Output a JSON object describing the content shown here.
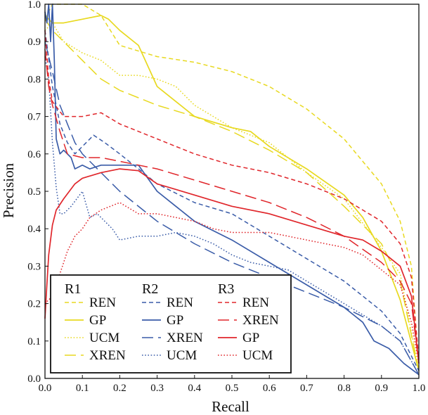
{
  "chart_data": {
    "type": "line",
    "xlabel": "Recall",
    "ylabel": "Precision",
    "xlim": [
      0,
      1
    ],
    "ylim": [
      0,
      1
    ],
    "xticks": [
      "0.0",
      "0.1",
      "0.2",
      "0.3",
      "0.4",
      "0.5",
      "0.6",
      "0.7",
      "0.8",
      "0.9",
      "1.0"
    ],
    "yticks": [
      "0.0",
      "0.1",
      "0.2",
      "0.3",
      "0.4",
      "0.5",
      "0.6",
      "0.7",
      "0.8",
      "0.9",
      "1.0"
    ],
    "grid": false,
    "legend_position": "bottom-left",
    "groups": [
      {
        "name": "R1",
        "color": "#e8d920"
      },
      {
        "name": "R2",
        "color": "#3a5ca8"
      },
      {
        "name": "R3",
        "color": "#e0262b"
      }
    ],
    "series": [
      {
        "group": "R1",
        "name": "REN",
        "color": "#e8d920",
        "style": "short-dash",
        "points": [
          [
            0.0,
            0.96
          ],
          [
            0.01,
            0.98
          ],
          [
            0.02,
            1.0
          ],
          [
            0.05,
            1.0
          ],
          [
            0.1,
            1.0
          ],
          [
            0.15,
            0.97
          ],
          [
            0.2,
            0.89
          ],
          [
            0.3,
            0.86
          ],
          [
            0.4,
            0.845
          ],
          [
            0.5,
            0.82
          ],
          [
            0.6,
            0.78
          ],
          [
            0.7,
            0.72
          ],
          [
            0.8,
            0.64
          ],
          [
            0.9,
            0.52
          ],
          [
            0.95,
            0.42
          ],
          [
            0.98,
            0.3
          ],
          [
            1.0,
            0.03
          ]
        ]
      },
      {
        "group": "R1",
        "name": "GP",
        "color": "#e8d920",
        "style": "solid",
        "points": [
          [
            0.0,
            0.97
          ],
          [
            0.02,
            0.95
          ],
          [
            0.05,
            0.95
          ],
          [
            0.1,
            0.96
          ],
          [
            0.15,
            0.97
          ],
          [
            0.17,
            0.96
          ],
          [
            0.2,
            0.93
          ],
          [
            0.25,
            0.89
          ],
          [
            0.3,
            0.78
          ],
          [
            0.4,
            0.7
          ],
          [
            0.5,
            0.67
          ],
          [
            0.55,
            0.66
          ],
          [
            0.6,
            0.62
          ],
          [
            0.7,
            0.56
          ],
          [
            0.8,
            0.49
          ],
          [
            0.85,
            0.43
          ],
          [
            0.9,
            0.34
          ],
          [
            0.95,
            0.21
          ],
          [
            1.0,
            0.02
          ]
        ]
      },
      {
        "group": "R1",
        "name": "UCM",
        "color": "#e8d920",
        "style": "dotted",
        "points": [
          [
            0.0,
            0.93
          ],
          [
            0.02,
            0.95
          ],
          [
            0.05,
            0.9
          ],
          [
            0.1,
            0.87
          ],
          [
            0.15,
            0.85
          ],
          [
            0.2,
            0.81
          ],
          [
            0.25,
            0.81
          ],
          [
            0.3,
            0.8
          ],
          [
            0.35,
            0.78
          ],
          [
            0.4,
            0.73
          ],
          [
            0.5,
            0.67
          ],
          [
            0.6,
            0.63
          ],
          [
            0.7,
            0.55
          ],
          [
            0.8,
            0.48
          ],
          [
            0.9,
            0.35
          ],
          [
            0.95,
            0.28
          ],
          [
            1.0,
            0.02
          ]
        ]
      },
      {
        "group": "R1",
        "name": "XREN",
        "color": "#e8d920",
        "style": "long-dash",
        "points": [
          [
            0.0,
            0.96
          ],
          [
            0.02,
            0.93
          ],
          [
            0.05,
            0.9
          ],
          [
            0.1,
            0.85
          ],
          [
            0.15,
            0.8
          ],
          [
            0.2,
            0.77
          ],
          [
            0.3,
            0.73
          ],
          [
            0.4,
            0.7
          ],
          [
            0.5,
            0.66
          ],
          [
            0.6,
            0.61
          ],
          [
            0.7,
            0.55
          ],
          [
            0.8,
            0.46
          ],
          [
            0.9,
            0.36
          ],
          [
            0.95,
            0.26
          ],
          [
            1.0,
            0.02
          ]
        ]
      },
      {
        "group": "R2",
        "name": "REN",
        "color": "#3a5ca8",
        "style": "short-dash",
        "points": [
          [
            0.0,
            0.93
          ],
          [
            0.02,
            0.78
          ],
          [
            0.04,
            0.68
          ],
          [
            0.06,
            0.63
          ],
          [
            0.08,
            0.6
          ],
          [
            0.1,
            0.62
          ],
          [
            0.13,
            0.65
          ],
          [
            0.16,
            0.63
          ],
          [
            0.2,
            0.6
          ],
          [
            0.25,
            0.56
          ],
          [
            0.3,
            0.52
          ],
          [
            0.4,
            0.47
          ],
          [
            0.5,
            0.44
          ],
          [
            0.6,
            0.38
          ],
          [
            0.7,
            0.32
          ],
          [
            0.8,
            0.26
          ],
          [
            0.9,
            0.18
          ],
          [
            0.95,
            0.12
          ],
          [
            1.0,
            0.02
          ]
        ]
      },
      {
        "group": "R2",
        "name": "GP",
        "color": "#3a5ca8",
        "style": "solid",
        "points": [
          [
            0.0,
            0.98
          ],
          [
            0.005,
            0.95
          ],
          [
            0.01,
            1.0
          ],
          [
            0.015,
            0.9
          ],
          [
            0.02,
            1.0
          ],
          [
            0.025,
            0.85
          ],
          [
            0.03,
            0.64
          ],
          [
            0.04,
            0.6
          ],
          [
            0.05,
            0.61
          ],
          [
            0.07,
            0.59
          ],
          [
            0.08,
            0.56
          ],
          [
            0.1,
            0.57
          ],
          [
            0.12,
            0.56
          ],
          [
            0.15,
            0.57
          ],
          [
            0.2,
            0.57
          ],
          [
            0.25,
            0.57
          ],
          [
            0.3,
            0.5
          ],
          [
            0.35,
            0.46
          ],
          [
            0.4,
            0.42
          ],
          [
            0.5,
            0.37
          ],
          [
            0.6,
            0.31
          ],
          [
            0.7,
            0.25
          ],
          [
            0.8,
            0.19
          ],
          [
            0.85,
            0.15
          ],
          [
            0.88,
            0.1
          ],
          [
            0.92,
            0.08
          ],
          [
            0.96,
            0.04
          ],
          [
            1.0,
            0.01
          ]
        ]
      },
      {
        "group": "R2",
        "name": "XREN",
        "color": "#3a5ca8",
        "style": "long-dash",
        "points": [
          [
            0.0,
            0.9
          ],
          [
            0.02,
            0.82
          ],
          [
            0.04,
            0.73
          ],
          [
            0.06,
            0.68
          ],
          [
            0.08,
            0.63
          ],
          [
            0.1,
            0.6
          ],
          [
            0.15,
            0.55
          ],
          [
            0.2,
            0.5
          ],
          [
            0.3,
            0.42
          ],
          [
            0.4,
            0.36
          ],
          [
            0.5,
            0.31
          ],
          [
            0.6,
            0.27
          ],
          [
            0.7,
            0.23
          ],
          [
            0.8,
            0.19
          ],
          [
            0.9,
            0.14
          ],
          [
            0.95,
            0.1
          ],
          [
            1.0,
            0.01
          ]
        ]
      },
      {
        "group": "R2",
        "name": "UCM",
        "color": "#3a5ca8",
        "style": "dotted",
        "points": [
          [
            0.0,
            0.86
          ],
          [
            0.01,
            0.8
          ],
          [
            0.02,
            0.63
          ],
          [
            0.03,
            0.51
          ],
          [
            0.04,
            0.44
          ],
          [
            0.05,
            0.44
          ],
          [
            0.07,
            0.46
          ],
          [
            0.1,
            0.5
          ],
          [
            0.12,
            0.43
          ],
          [
            0.14,
            0.44
          ],
          [
            0.16,
            0.42
          ],
          [
            0.18,
            0.4
          ],
          [
            0.2,
            0.37
          ],
          [
            0.25,
            0.38
          ],
          [
            0.3,
            0.38
          ],
          [
            0.35,
            0.39
          ],
          [
            0.4,
            0.38
          ],
          [
            0.45,
            0.36
          ],
          [
            0.5,
            0.33
          ],
          [
            0.55,
            0.31
          ],
          [
            0.6,
            0.3
          ],
          [
            0.65,
            0.29
          ],
          [
            0.7,
            0.26
          ],
          [
            0.8,
            0.2
          ],
          [
            0.9,
            0.14
          ],
          [
            0.95,
            0.1
          ],
          [
            1.0,
            0.01
          ]
        ]
      },
      {
        "group": "R3",
        "name": "REN",
        "color": "#e0262b",
        "style": "short-dash",
        "points": [
          [
            0.0,
            0.93
          ],
          [
            0.01,
            0.8
          ],
          [
            0.02,
            0.74
          ],
          [
            0.05,
            0.7
          ],
          [
            0.1,
            0.7
          ],
          [
            0.15,
            0.71
          ],
          [
            0.2,
            0.68
          ],
          [
            0.3,
            0.64
          ],
          [
            0.4,
            0.6
          ],
          [
            0.5,
            0.57
          ],
          [
            0.6,
            0.55
          ],
          [
            0.7,
            0.52
          ],
          [
            0.8,
            0.48
          ],
          [
            0.9,
            0.42
          ],
          [
            0.95,
            0.36
          ],
          [
            0.98,
            0.27
          ],
          [
            1.0,
            0.05
          ]
        ]
      },
      {
        "group": "R3",
        "name": "XREN",
        "color": "#e0262b",
        "style": "long-dash",
        "points": [
          [
            0.0,
            0.88
          ],
          [
            0.01,
            0.78
          ],
          [
            0.02,
            0.73
          ],
          [
            0.04,
            0.66
          ],
          [
            0.06,
            0.6
          ],
          [
            0.1,
            0.59
          ],
          [
            0.15,
            0.59
          ],
          [
            0.2,
            0.58
          ],
          [
            0.3,
            0.56
          ],
          [
            0.4,
            0.53
          ],
          [
            0.5,
            0.5
          ],
          [
            0.6,
            0.47
          ],
          [
            0.7,
            0.43
          ],
          [
            0.8,
            0.38
          ],
          [
            0.9,
            0.31
          ],
          [
            0.95,
            0.26
          ],
          [
            0.98,
            0.2
          ],
          [
            1.0,
            0.04
          ]
        ]
      },
      {
        "group": "R3",
        "name": "GP",
        "color": "#e0262b",
        "style": "solid",
        "points": [
          [
            0.0,
            0.16
          ],
          [
            0.005,
            0.25
          ],
          [
            0.01,
            0.33
          ],
          [
            0.02,
            0.41
          ],
          [
            0.03,
            0.45
          ],
          [
            0.05,
            0.48
          ],
          [
            0.08,
            0.52
          ],
          [
            0.1,
            0.535
          ],
          [
            0.15,
            0.55
          ],
          [
            0.2,
            0.56
          ],
          [
            0.25,
            0.555
          ],
          [
            0.3,
            0.52
          ],
          [
            0.4,
            0.49
          ],
          [
            0.5,
            0.46
          ],
          [
            0.6,
            0.44
          ],
          [
            0.7,
            0.41
          ],
          [
            0.8,
            0.38
          ],
          [
            0.85,
            0.37
          ],
          [
            0.9,
            0.34
          ],
          [
            0.95,
            0.3
          ],
          [
            0.98,
            0.22
          ],
          [
            1.0,
            0.04
          ]
        ]
      },
      {
        "group": "R3",
        "name": "UCM",
        "color": "#e0262b",
        "style": "dotted",
        "points": [
          [
            0.0,
            0.2
          ],
          [
            0.02,
            0.22
          ],
          [
            0.04,
            0.28
          ],
          [
            0.06,
            0.34
          ],
          [
            0.08,
            0.38
          ],
          [
            0.1,
            0.4
          ],
          [
            0.12,
            0.43
          ],
          [
            0.15,
            0.45
          ],
          [
            0.2,
            0.47
          ],
          [
            0.25,
            0.44
          ],
          [
            0.3,
            0.44
          ],
          [
            0.35,
            0.43
          ],
          [
            0.4,
            0.42
          ],
          [
            0.45,
            0.4
          ],
          [
            0.5,
            0.39
          ],
          [
            0.6,
            0.39
          ],
          [
            0.65,
            0.38
          ],
          [
            0.7,
            0.37
          ],
          [
            0.75,
            0.36
          ],
          [
            0.8,
            0.35
          ],
          [
            0.85,
            0.33
          ],
          [
            0.9,
            0.29
          ],
          [
            0.95,
            0.25
          ],
          [
            0.98,
            0.15
          ],
          [
            1.0,
            0.04
          ]
        ]
      }
    ]
  }
}
